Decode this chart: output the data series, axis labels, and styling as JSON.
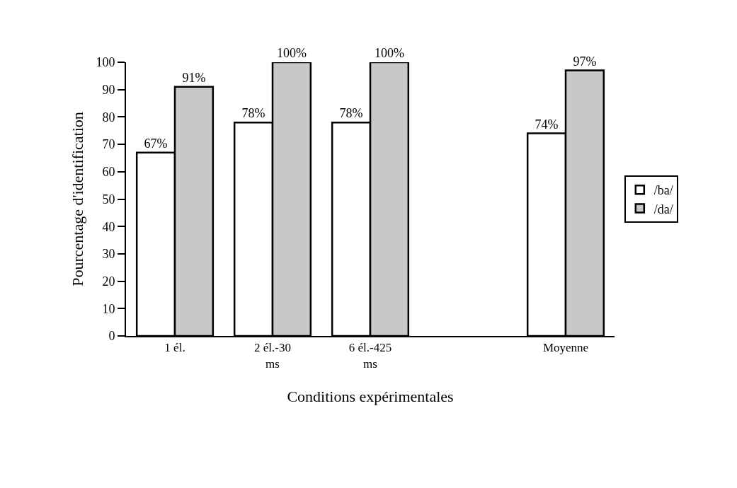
{
  "chart_data": {
    "type": "bar",
    "xlabel": "Conditions expérimentales",
    "ylabel": "Pourcentage d'identification",
    "categories": [
      "1 él.",
      "2 él.-30 ms",
      "6 él.-425 ms",
      null,
      "Moyenne"
    ],
    "series": [
      {
        "name": "/ba/",
        "color": "#ffffff",
        "values": [
          67,
          78,
          78,
          null,
          74
        ],
        "value_labels": [
          "67%",
          "78%",
          "78%",
          null,
          "74%"
        ]
      },
      {
        "name": "/da/",
        "color": "#c8c8c8",
        "values": [
          91,
          100,
          100,
          null,
          97
        ],
        "value_labels": [
          "91%",
          "100%",
          "100%",
          null,
          "97%"
        ]
      }
    ],
    "ylim": [
      0,
      100
    ],
    "yticks": [
      0,
      10,
      20,
      30,
      40,
      50,
      60,
      70,
      80,
      90,
      100
    ],
    "grid": false,
    "legend": "right"
  }
}
